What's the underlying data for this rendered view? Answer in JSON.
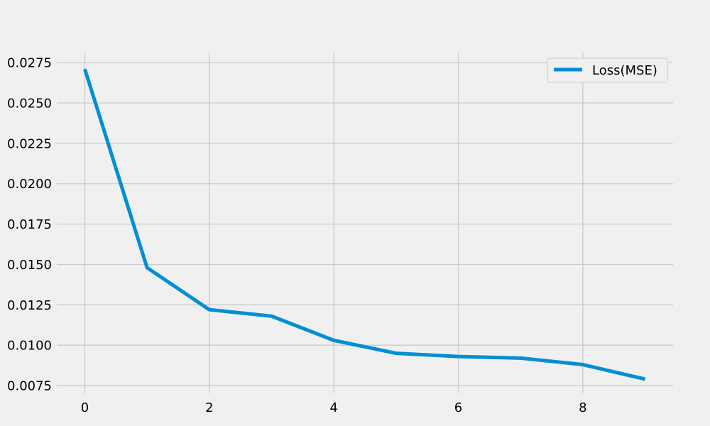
{
  "colors": {
    "background": "#f0f0f0",
    "grid": "#cbcbcb",
    "series": "#008fd5",
    "legend_border": "#cccccc",
    "legend_bg": "#f0f0f0"
  },
  "chart_data": {
    "type": "line",
    "title": "",
    "xlabel": "",
    "ylabel": "",
    "grid": true,
    "legend_position": "top-right",
    "xlim": [
      -0.45,
      9.45
    ],
    "ylim": [
      0.00702,
      0.02812
    ],
    "x_ticks": [
      0,
      2,
      4,
      6,
      8
    ],
    "x_tick_labels": [
      "0",
      "2",
      "4",
      "6",
      "8"
    ],
    "y_ticks": [
      0.0075,
      0.01,
      0.0125,
      0.015,
      0.0175,
      0.02,
      0.0225,
      0.025,
      0.0275
    ],
    "y_tick_labels": [
      "0.0075",
      "0.0100",
      "0.0125",
      "0.0150",
      "0.0175",
      "0.0200",
      "0.0225",
      "0.0250",
      "0.0275"
    ],
    "series": [
      {
        "name": "Loss(MSE)",
        "x": [
          0,
          1,
          2,
          3,
          4,
          5,
          6,
          7,
          8,
          9
        ],
        "values": [
          0.0271,
          0.0148,
          0.0122,
          0.0118,
          0.0103,
          0.0095,
          0.0093,
          0.0092,
          0.0088,
          0.0079
        ]
      }
    ]
  }
}
